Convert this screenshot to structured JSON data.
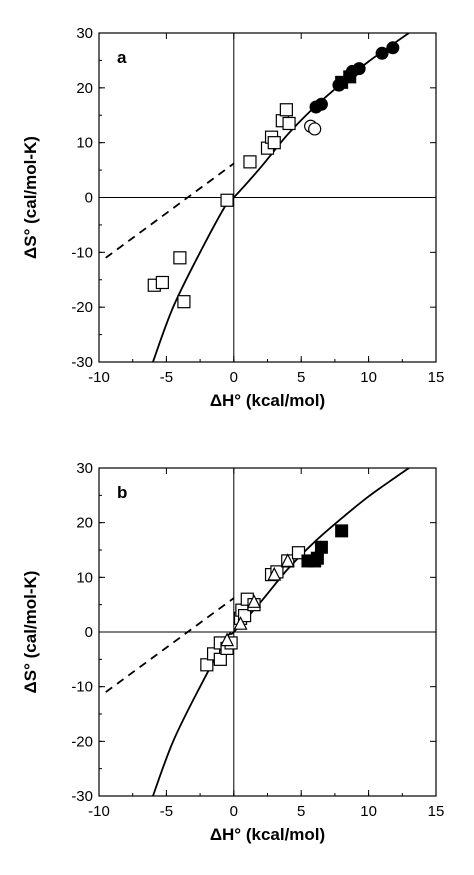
{
  "chart_data": [
    {
      "type": "scatter",
      "panel_label": "a",
      "xlabel": "ΔH° (kcal/mol)",
      "ylabel": "ΔS° (cal/mol-K)",
      "xlim": [
        -10,
        15
      ],
      "ylim": [
        -30,
        30
      ],
      "xticks": [
        "-10",
        "-5",
        "0",
        "5",
        "10",
        "15"
      ],
      "yticks": [
        "30",
        "20",
        "10",
        "0",
        "-10",
        "-20",
        "-30"
      ],
      "grid": false,
      "series": [
        {
          "marker": "open-square",
          "points": [
            [
              -5.9,
              -16
            ],
            [
              -5.3,
              -15.5
            ],
            [
              -4.0,
              -11
            ],
            [
              -3.7,
              -19
            ],
            [
              -0.5,
              -0.5
            ],
            [
              1.2,
              6.5
            ],
            [
              2.5,
              9
            ],
            [
              2.8,
              11
            ],
            [
              3.0,
              10
            ],
            [
              3.6,
              14
            ],
            [
              3.9,
              16
            ],
            [
              4.1,
              13.5
            ]
          ]
        },
        {
          "marker": "open-circle",
          "points": [
            [
              5.7,
              13
            ],
            [
              6.0,
              12.5
            ]
          ]
        },
        {
          "marker": "filled-circle",
          "points": [
            [
              6.1,
              16.5
            ],
            [
              6.5,
              17
            ],
            [
              7.8,
              20.5
            ],
            [
              8.8,
              23
            ],
            [
              9.3,
              23.5
            ],
            [
              11.0,
              26.3
            ],
            [
              11.8,
              27.3
            ]
          ]
        },
        {
          "marker": "filled-square",
          "points": [
            [
              8.0,
              21
            ],
            [
              8.6,
              22
            ]
          ]
        }
      ],
      "fit_curve": {
        "style": "solid",
        "points": [
          [
            -6,
            -30
          ],
          [
            -4.5,
            -20
          ],
          [
            -2.5,
            -10
          ],
          [
            -0.5,
            -1
          ],
          [
            0,
            0
          ],
          [
            2,
            5.5
          ],
          [
            4,
            11.5
          ],
          [
            6,
            16.5
          ],
          [
            8,
            20.8
          ],
          [
            10,
            24.8
          ],
          [
            12,
            28.3
          ],
          [
            13,
            30
          ]
        ]
      },
      "extrapolation": {
        "style": "dashed",
        "points": [
          [
            -9.5,
            -11
          ],
          [
            0,
            6.2
          ]
        ]
      }
    },
    {
      "type": "scatter",
      "panel_label": "b",
      "xlabel": "ΔH° (kcal/mol)",
      "ylabel": "ΔS° (cal/mol-K)",
      "xlim": [
        -10,
        15
      ],
      "ylim": [
        -30,
        30
      ],
      "xticks": [
        "-10",
        "-5",
        "0",
        "5",
        "10",
        "15"
      ],
      "yticks": [
        "30",
        "20",
        "10",
        "0",
        "-10",
        "-20",
        "-30"
      ],
      "grid": false,
      "series": [
        {
          "marker": "open-square",
          "points": [
            [
              -2.0,
              -6
            ],
            [
              -1.5,
              -4
            ],
            [
              -1.0,
              -5
            ],
            [
              -1.0,
              -2
            ],
            [
              -0.5,
              -3
            ],
            [
              -0.2,
              -2
            ],
            [
              0.5,
              2.5
            ],
            [
              0.6,
              4
            ],
            [
              0.8,
              3
            ],
            [
              1.0,
              6
            ],
            [
              1.5,
              5
            ],
            [
              2.8,
              10.5
            ],
            [
              3.2,
              11
            ],
            [
              4.0,
              13
            ],
            [
              4.8,
              14.5
            ]
          ]
        },
        {
          "marker": "open-triangle",
          "points": [
            [
              -0.5,
              -1.5
            ],
            [
              0.5,
              1.5
            ],
            [
              1.5,
              5.5
            ],
            [
              3.0,
              10.5
            ],
            [
              4.0,
              13
            ]
          ]
        },
        {
          "marker": "filled-square",
          "points": [
            [
              5.5,
              13
            ],
            [
              6.0,
              13
            ],
            [
              6.2,
              13.5
            ],
            [
              6.5,
              15.5
            ],
            [
              8.0,
              18.5
            ]
          ]
        }
      ],
      "fit_curve": {
        "style": "solid",
        "points": [
          [
            -6,
            -30
          ],
          [
            -4.5,
            -20
          ],
          [
            -2.5,
            -10
          ],
          [
            -0.5,
            -1
          ],
          [
            0,
            0
          ],
          [
            2,
            5.5
          ],
          [
            4,
            11.5
          ],
          [
            6,
            16.5
          ],
          [
            8,
            20.8
          ],
          [
            10,
            24.8
          ],
          [
            12,
            28.3
          ],
          [
            13,
            30
          ]
        ]
      },
      "extrapolation": {
        "style": "dashed",
        "points": [
          [
            -9.5,
            -11
          ],
          [
            0,
            6.2
          ]
        ]
      }
    }
  ]
}
